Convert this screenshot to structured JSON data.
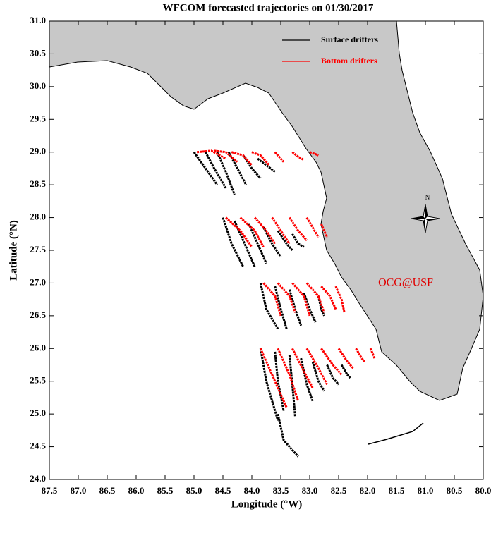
{
  "chart_data": {
    "type": "trajectory-map",
    "title": "WFCOM forecasted trajectories on 01/30/2017",
    "x_label": "Longitude (°W)",
    "y_label": "Latitude (°N)",
    "xlim": [
      87.5,
      80.0
    ],
    "ylim": [
      24.0,
      31.0
    ],
    "xticks": [
      87.5,
      {
        "value": 87,
        "label": "87.0"
      },
      86.5,
      {
        "value": 86,
        "label": "86.0"
      },
      85.5,
      {
        "value": 85,
        "label": "85.0"
      },
      84.5,
      {
        "value": 84,
        "label": "84.0"
      },
      83.5,
      {
        "value": 83,
        "label": "83.0"
      },
      82.5,
      {
        "value": 82,
        "label": "82.0"
      },
      81.5,
      {
        "value": 81,
        "label": "81.0"
      },
      80.5,
      {
        "value": 80,
        "label": "80.0"
      }
    ],
    "yticks": [
      {
        "value": 24,
        "label": "24.0"
      },
      24.5,
      {
        "value": 25,
        "label": "25.0"
      },
      25.5,
      {
        "value": 26,
        "label": "26.0"
      },
      26.5,
      {
        "value": 27,
        "label": "27.0"
      },
      27.5,
      {
        "value": 28,
        "label": "28.0"
      },
      28.5,
      {
        "value": 29,
        "label": "29.0"
      },
      29.5,
      {
        "value": 30,
        "label": "30.0"
      },
      30.5,
      {
        "value": 31,
        "label": "31.0"
      }
    ],
    "annotation": "OCG@USF",
    "compass_label": "N",
    "series": [
      {
        "name": "Surface drifters",
        "color": "#000000",
        "tracks": [
          {
            "x": [
              85.0,
              84.8,
              84.6
            ],
            "y": [
              29.0,
              28.75,
              28.5
            ]
          },
          {
            "x": [
              84.8,
              84.65,
              84.45
            ],
            "y": [
              29.0,
              28.75,
              28.45
            ]
          },
          {
            "x": [
              84.6,
              84.45,
              84.3
            ],
            "y": [
              29.0,
              28.7,
              28.35
            ]
          },
          {
            "x": [
              84.4,
              84.25,
              84.1
            ],
            "y": [
              29.0,
              28.75,
              28.5
            ]
          },
          {
            "x": [
              84.15,
              84.0,
              83.85
            ],
            "y": [
              28.95,
              28.75,
              28.6
            ]
          },
          {
            "x": [
              83.9,
              83.75,
              83.6
            ],
            "y": [
              28.9,
              28.8,
              28.7
            ]
          },
          {
            "x": [
              84.5,
              84.35,
              84.15
            ],
            "y": [
              28.0,
              27.6,
              27.25
            ]
          },
          {
            "x": [
              84.3,
              84.1,
              83.95
            ],
            "y": [
              27.95,
              27.55,
              27.25
            ]
          },
          {
            "x": [
              84.05,
              83.9,
              83.75
            ],
            "y": [
              27.9,
              27.6,
              27.3
            ]
          },
          {
            "x": [
              83.8,
              83.65,
              83.5
            ],
            "y": [
              27.85,
              27.6,
              27.4
            ]
          },
          {
            "x": [
              83.55,
              83.4,
              83.3
            ],
            "y": [
              27.8,
              27.6,
              27.5
            ]
          },
          {
            "x": [
              83.3,
              83.2,
              83.1
            ],
            "y": [
              27.75,
              27.6,
              27.55
            ]
          },
          {
            "x": [
              83.85,
              83.75,
              83.55
            ],
            "y": [
              27.0,
              26.6,
              26.3
            ]
          },
          {
            "x": [
              83.6,
              83.5,
              83.4
            ],
            "y": [
              26.95,
              26.6,
              26.3
            ]
          },
          {
            "x": [
              83.35,
              83.25,
              83.15
            ],
            "y": [
              26.9,
              26.6,
              26.35
            ]
          },
          {
            "x": [
              83.1,
              83.0,
              82.9
            ],
            "y": [
              26.85,
              26.6,
              26.4
            ]
          },
          {
            "x": [
              82.85,
              82.8,
              82.75
            ],
            "y": [
              26.8,
              26.6,
              26.5
            ]
          },
          {
            "x": [
              83.85,
              83.75,
              83.55
            ],
            "y": [
              26.0,
              25.5,
              24.9
            ]
          },
          {
            "x": [
              83.55,
              83.45,
              83.2
            ],
            "y": [
              25.0,
              24.6,
              24.35
            ]
          },
          {
            "x": [
              83.6,
              83.55,
              83.45
            ],
            "y": [
              25.95,
              25.5,
              25.05
            ]
          },
          {
            "x": [
              83.35,
              83.3,
              83.25
            ],
            "y": [
              25.9,
              25.45,
              24.95
            ]
          },
          {
            "x": [
              83.15,
              83.05,
              82.95
            ],
            "y": [
              25.85,
              25.45,
              25.2
            ]
          },
          {
            "x": [
              82.95,
              82.85,
              82.75
            ],
            "y": [
              25.8,
              25.5,
              25.35
            ]
          },
          {
            "x": [
              82.7,
              82.6,
              82.5
            ],
            "y": [
              25.75,
              25.55,
              25.45
            ]
          },
          {
            "x": [
              82.45,
              82.35,
              82.3
            ],
            "y": [
              25.75,
              25.6,
              25.55
            ]
          }
        ]
      },
      {
        "name": "Bottom drifters",
        "color": "#ff0000",
        "tracks": [
          {
            "x": [
              84.95,
              84.7,
              84.45
            ],
            "y": [
              29.0,
              29.02,
              28.9
            ]
          },
          {
            "x": [
              84.65,
              84.45,
              84.25
            ],
            "y": [
              29.02,
              29.0,
              28.85
            ]
          },
          {
            "x": [
              84.35,
              84.15,
              84.0
            ],
            "y": [
              29.0,
              28.95,
              28.8
            ]
          },
          {
            "x": [
              84.0,
              83.85,
              83.7
            ],
            "y": [
              29.0,
              28.95,
              28.8
            ]
          },
          {
            "x": [
              83.6,
              83.5,
              83.45
            ],
            "y": [
              29.0,
              28.9,
              28.85
            ]
          },
          {
            "x": [
              83.3,
              83.2,
              83.1
            ],
            "y": [
              29.0,
              28.93,
              28.88
            ]
          },
          {
            "x": [
              83.0,
              82.9,
              82.85
            ],
            "y": [
              29.0,
              28.97,
              28.95
            ]
          },
          {
            "x": [
              84.45,
              84.2,
              84.0
            ],
            "y": [
              28.0,
              27.8,
              27.55
            ]
          },
          {
            "x": [
              84.2,
              83.95,
              83.8
            ],
            "y": [
              28.0,
              27.8,
              27.55
            ]
          },
          {
            "x": [
              83.95,
              83.75,
              83.6
            ],
            "y": [
              28.0,
              27.8,
              27.6
            ]
          },
          {
            "x": [
              83.65,
              83.5,
              83.35
            ],
            "y": [
              28.0,
              27.8,
              27.6
            ]
          },
          {
            "x": [
              83.35,
              83.2,
              83.05
            ],
            "y": [
              28.0,
              27.8,
              27.65
            ]
          },
          {
            "x": [
              83.05,
              82.95,
              82.85
            ],
            "y": [
              28.0,
              27.85,
              27.7
            ]
          },
          {
            "x": [
              82.8,
              82.75,
              82.7
            ],
            "y": [
              27.9,
              27.8,
              27.7
            ]
          },
          {
            "x": [
              83.8,
              83.6,
              83.5
            ],
            "y": [
              27.0,
              26.8,
              26.5
            ]
          },
          {
            "x": [
              83.55,
              83.35,
              83.25
            ],
            "y": [
              27.0,
              26.8,
              26.55
            ]
          },
          {
            "x": [
              83.3,
              83.1,
              83.0
            ],
            "y": [
              27.0,
              26.8,
              26.5
            ]
          },
          {
            "x": [
              83.05,
              82.85,
              82.75
            ],
            "y": [
              27.0,
              26.8,
              26.55
            ]
          },
          {
            "x": [
              82.8,
              82.65,
              82.55
            ],
            "y": [
              26.95,
              26.8,
              26.6
            ]
          },
          {
            "x": [
              82.55,
              82.45,
              82.4
            ],
            "y": [
              26.95,
              26.75,
              26.55
            ]
          },
          {
            "x": [
              83.85,
              83.65,
              83.4
            ],
            "y": [
              26.0,
              25.6,
              25.1
            ]
          },
          {
            "x": [
              83.55,
              83.35,
              83.2
            ],
            "y": [
              26.0,
              25.6,
              25.2
            ]
          },
          {
            "x": [
              83.3,
              83.1,
              82.95
            ],
            "y": [
              26.0,
              25.65,
              25.4
            ]
          },
          {
            "x": [
              83.05,
              82.85,
              82.7
            ],
            "y": [
              26.0,
              25.7,
              25.45
            ]
          },
          {
            "x": [
              82.8,
              82.6,
              82.45
            ],
            "y": [
              26.0,
              25.75,
              25.6
            ]
          },
          {
            "x": [
              82.5,
              82.35,
              82.25
            ],
            "y": [
              26.0,
              25.8,
              25.7
            ]
          },
          {
            "x": [
              82.2,
              82.1,
              82.05
            ],
            "y": [
              26.0,
              25.85,
              25.8
            ]
          },
          {
            "x": [
              81.95,
              81.9,
              81.88
            ],
            "y": [
              26.0,
              25.9,
              25.85
            ]
          }
        ]
      }
    ]
  }
}
